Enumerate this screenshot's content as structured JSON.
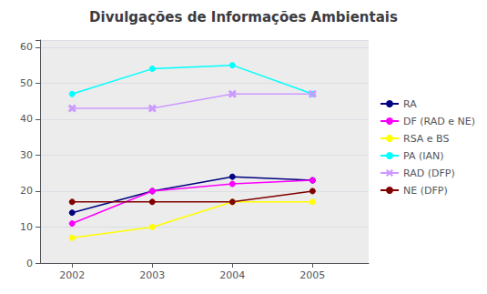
{
  "chart_data": {
    "type": "line",
    "title": "Divulgações de Informações Ambientais",
    "x": [
      2002,
      2003,
      2004,
      2005
    ],
    "series": [
      {
        "name": "RA",
        "color": "#000080",
        "marker": "circle",
        "values": [
          14,
          20,
          24,
          23
        ]
      },
      {
        "name": "DF (RAD e NE)",
        "color": "#FF00FF",
        "marker": "circle",
        "values": [
          11,
          20,
          22,
          23
        ]
      },
      {
        "name": "RSA e BS",
        "color": "#FFFF00",
        "marker": "circle",
        "values": [
          7,
          10,
          17,
          17
        ]
      },
      {
        "name": "PA (IAN)",
        "color": "#00FFFF",
        "marker": "circle",
        "values": [
          47,
          54,
          55,
          47
        ]
      },
      {
        "name": "RAD (DFP)",
        "color": "#CC99FF",
        "marker": "x",
        "values": [
          43,
          43,
          47,
          47
        ]
      },
      {
        "name": "NE (DFP)",
        "color": "#800000",
        "marker": "circle",
        "values": [
          17,
          17,
          17,
          20
        ]
      }
    ],
    "xlim": [
      2001.6,
      2005.7
    ],
    "xticks": [
      2002,
      2003,
      2004,
      2005
    ],
    "ylim": [
      0,
      62
    ],
    "yticks": [
      0,
      10,
      20,
      30,
      40,
      50,
      60
    ],
    "grid": true,
    "legend": "right"
  }
}
